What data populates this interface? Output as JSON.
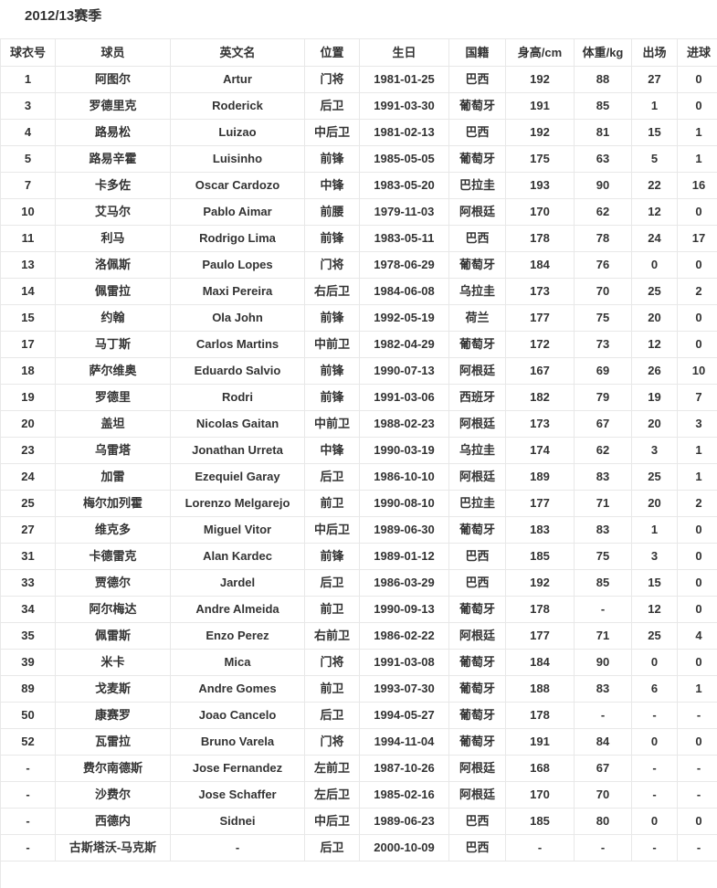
{
  "season_title": "2012/13赛季",
  "table": {
    "columns": [
      "球衣号",
      "球员",
      "英文名",
      "位置",
      "生日",
      "国籍",
      "身高/cm",
      "体重/kg",
      "出场",
      "进球"
    ],
    "rows": [
      [
        "1",
        "阿图尔",
        "Artur",
        "门将",
        "1981-01-25",
        "巴西",
        "192",
        "88",
        "27",
        "0"
      ],
      [
        "3",
        "罗德里克",
        "Roderick",
        "后卫",
        "1991-03-30",
        "葡萄牙",
        "191",
        "85",
        "1",
        "0"
      ],
      [
        "4",
        "路易松",
        "Luizao",
        "中后卫",
        "1981-02-13",
        "巴西",
        "192",
        "81",
        "15",
        "1"
      ],
      [
        "5",
        "路易辛霍",
        "Luisinho",
        "前锋",
        "1985-05-05",
        "葡萄牙",
        "175",
        "63",
        "5",
        "1"
      ],
      [
        "7",
        "卡多佐",
        "Oscar Cardozo",
        "中锋",
        "1983-05-20",
        "巴拉圭",
        "193",
        "90",
        "22",
        "16"
      ],
      [
        "10",
        "艾马尔",
        "Pablo Aimar",
        "前腰",
        "1979-11-03",
        "阿根廷",
        "170",
        "62",
        "12",
        "0"
      ],
      [
        "11",
        "利马",
        "Rodrigo Lima",
        "前锋",
        "1983-05-11",
        "巴西",
        "178",
        "78",
        "24",
        "17"
      ],
      [
        "13",
        "洛佩斯",
        "Paulo Lopes",
        "门将",
        "1978-06-29",
        "葡萄牙",
        "184",
        "76",
        "0",
        "0"
      ],
      [
        "14",
        "佩雷拉",
        "Maxi Pereira",
        "右后卫",
        "1984-06-08",
        "乌拉圭",
        "173",
        "70",
        "25",
        "2"
      ],
      [
        "15",
        "约翰",
        "Ola John",
        "前锋",
        "1992-05-19",
        "荷兰",
        "177",
        "75",
        "20",
        "0"
      ],
      [
        "17",
        "马丁斯",
        "Carlos Martins",
        "中前卫",
        "1982-04-29",
        "葡萄牙",
        "172",
        "73",
        "12",
        "0"
      ],
      [
        "18",
        "萨尔维奥",
        "Eduardo Salvio",
        "前锋",
        "1990-07-13",
        "阿根廷",
        "167",
        "69",
        "26",
        "10"
      ],
      [
        "19",
        "罗德里",
        "Rodri",
        "前锋",
        "1991-03-06",
        "西班牙",
        "182",
        "79",
        "19",
        "7"
      ],
      [
        "20",
        "盖坦",
        "Nicolas Gaitan",
        "中前卫",
        "1988-02-23",
        "阿根廷",
        "173",
        "67",
        "20",
        "3"
      ],
      [
        "23",
        "乌雷塔",
        "Jonathan Urreta",
        "中锋",
        "1990-03-19",
        "乌拉圭",
        "174",
        "62",
        "3",
        "1"
      ],
      [
        "24",
        "加雷",
        "Ezequiel Garay",
        "后卫",
        "1986-10-10",
        "阿根廷",
        "189",
        "83",
        "25",
        "1"
      ],
      [
        "25",
        "梅尔加列霍",
        "Lorenzo Melgarejo",
        "前卫",
        "1990-08-10",
        "巴拉圭",
        "177",
        "71",
        "20",
        "2"
      ],
      [
        "27",
        "维克多",
        "Miguel Vitor",
        "中后卫",
        "1989-06-30",
        "葡萄牙",
        "183",
        "83",
        "1",
        "0"
      ],
      [
        "31",
        "卡德雷克",
        "Alan Kardec",
        "前锋",
        "1989-01-12",
        "巴西",
        "185",
        "75",
        "3",
        "0"
      ],
      [
        "33",
        "贾德尔",
        "Jardel",
        "后卫",
        "1986-03-29",
        "巴西",
        "192",
        "85",
        "15",
        "0"
      ],
      [
        "34",
        "阿尔梅达",
        "Andre Almeida",
        "前卫",
        "1990-09-13",
        "葡萄牙",
        "178",
        "-",
        "12",
        "0"
      ],
      [
        "35",
        "佩雷斯",
        "Enzo Perez",
        "右前卫",
        "1986-02-22",
        "阿根廷",
        "177",
        "71",
        "25",
        "4"
      ],
      [
        "39",
        "米卡",
        "Mica",
        "门将",
        "1991-03-08",
        "葡萄牙",
        "184",
        "90",
        "0",
        "0"
      ],
      [
        "89",
        "戈麦斯",
        "Andre Gomes",
        "前卫",
        "1993-07-30",
        "葡萄牙",
        "188",
        "83",
        "6",
        "1"
      ],
      [
        "50",
        "康赛罗",
        "Joao Cancelo",
        "后卫",
        "1994-05-27",
        "葡萄牙",
        "178",
        "-",
        "-",
        "-"
      ],
      [
        "52",
        "瓦雷拉",
        "Bruno Varela",
        "门将",
        "1994-11-04",
        "葡萄牙",
        "191",
        "84",
        "0",
        "0"
      ],
      [
        "-",
        "费尔南德斯",
        "Jose Fernandez",
        "左前卫",
        "1987-10-26",
        "阿根廷",
        "168",
        "67",
        "-",
        "-"
      ],
      [
        "-",
        "沙费尔",
        "Jose Schaffer",
        "左后卫",
        "1985-02-16",
        "阿根廷",
        "170",
        "70",
        "-",
        "-"
      ],
      [
        "-",
        "西德内",
        "Sidnei",
        "中后卫",
        "1989-06-23",
        "巴西",
        "185",
        "80",
        "0",
        "0"
      ],
      [
        "-",
        "古斯塔沃-马克斯",
        "-",
        "后卫",
        "2000-10-09",
        "巴西",
        "-",
        "-",
        "-",
        "-"
      ]
    ]
  },
  "colors": {
    "border": "#e8e8e8",
    "text": "#333333",
    "background": "#ffffff"
  }
}
